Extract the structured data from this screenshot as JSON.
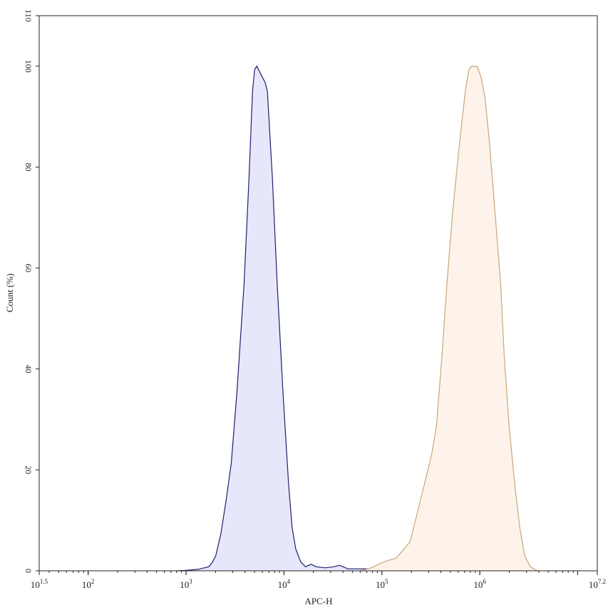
{
  "chart_data": {
    "type": "area",
    "title": "",
    "xlabel": "APC-H",
    "ylabel": "Count (%)",
    "xscale": "log",
    "xlim_log10": [
      1.5,
      7.2
    ],
    "ylim": [
      0,
      110
    ],
    "grid": false,
    "legend": "none",
    "x_ticks": [
      {
        "exp": 1.5,
        "base": "10",
        "sup": "1.5"
      },
      {
        "exp": 2,
        "base": "10",
        "sup": "2"
      },
      {
        "exp": 3,
        "base": "10",
        "sup": "3"
      },
      {
        "exp": 4,
        "base": "10",
        "sup": "4"
      },
      {
        "exp": 5,
        "base": "10",
        "sup": "5"
      },
      {
        "exp": 6,
        "base": "10",
        "sup": "6"
      },
      {
        "exp": 7.2,
        "base": "10",
        "sup": "7.2"
      }
    ],
    "y_ticks": [
      0,
      20,
      40,
      60,
      80,
      100,
      110
    ],
    "series": [
      {
        "stroke": "#1f1f6e",
        "fill": "#e6e7fa",
        "x": [
          805,
          1000,
          1327,
          1702,
          1849,
          2009,
          2259,
          2582,
          2897,
          3311,
          3908,
          4395,
          4775,
          5012,
          5272,
          5728,
          6442,
          6761,
          7603,
          8531,
          9750,
          11143,
          12106,
          13152,
          14791,
          16596,
          18967,
          21330,
          26424,
          32285,
          36898,
          40087,
          44978,
          71779,
          139316,
          271019,
          378443
        ],
        "y": [
          0,
          0.1,
          0.3,
          0.8,
          1.6,
          3.0,
          7.2,
          14.3,
          21.4,
          35.6,
          56.8,
          78.0,
          95.0,
          99.3,
          100,
          98.6,
          96.7,
          95.0,
          78.0,
          56.8,
          35.6,
          17.1,
          8.6,
          4.4,
          1.8,
          0.8,
          1.3,
          0.8,
          0.6,
          0.8,
          1.1,
          0.8,
          0.4,
          0.4,
          0.3,
          0.1,
          0
        ]
      },
      {
        "stroke": "#c9a679",
        "fill": "#fdf3ea",
        "x": [
          60674,
          77983,
          100000,
          118032,
          139316,
          164816,
          194536,
          229615,
          271019,
          319890,
          359749,
          411150,
          461318,
          527230,
          622300,
          711214,
          772681,
          826038,
          944061,
          1025640,
          1132400,
          1250200,
          1428900,
          1633100,
          1774200,
          1995300,
          2275100,
          2558500,
          2870800,
          3281100,
          3872600
        ],
        "y": [
          0,
          0.6,
          1.6,
          2.1,
          2.5,
          4.1,
          5.8,
          11.5,
          17.1,
          22.8,
          28.5,
          42.6,
          56.8,
          71.0,
          85.1,
          95.0,
          99.3,
          100,
          99.9,
          97.9,
          93.6,
          85.1,
          71.0,
          56.8,
          42.6,
          28.5,
          17.1,
          8.6,
          3.0,
          0.8,
          0
        ]
      }
    ]
  }
}
